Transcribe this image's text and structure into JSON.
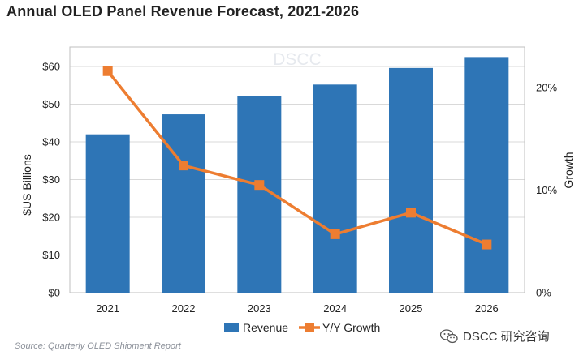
{
  "title": "Annual OLED Panel Revenue Forecast, 2021-2026",
  "watermark": "DSCC",
  "source": "Source: Quarterly OLED Shipment Report",
  "brand": {
    "label": "DSCC 研究咨询",
    "icon": "wechat-icon"
  },
  "colors": {
    "revenue": "#2E75B6",
    "growth": "#ED7D31",
    "grid": "#d9d9d9"
  },
  "chart_data": {
    "type": "bar",
    "categories": [
      "2021",
      "2022",
      "2023",
      "2024",
      "2025",
      "2026"
    ],
    "series": [
      {
        "name": "Revenue",
        "type": "bar",
        "axis": "left",
        "values": [
          42,
          47.3,
          52.2,
          55.2,
          59.6,
          62.5
        ]
      },
      {
        "name": "Y/Y Growth",
        "type": "line",
        "axis": "right",
        "values": [
          21.6,
          12.4,
          10.5,
          5.7,
          7.8,
          4.7
        ]
      }
    ],
    "ylabel": "$US Billions",
    "y2label": "Growth",
    "ylim": [
      0,
      60
    ],
    "y2lim": [
      0,
      20
    ],
    "yticks": [
      "$0",
      "$10",
      "$20",
      "$30",
      "$40",
      "$50",
      "$60"
    ],
    "y2ticks": [
      "0%",
      "10%",
      "20%"
    ],
    "grid": true,
    "legend_position": "bottom"
  }
}
